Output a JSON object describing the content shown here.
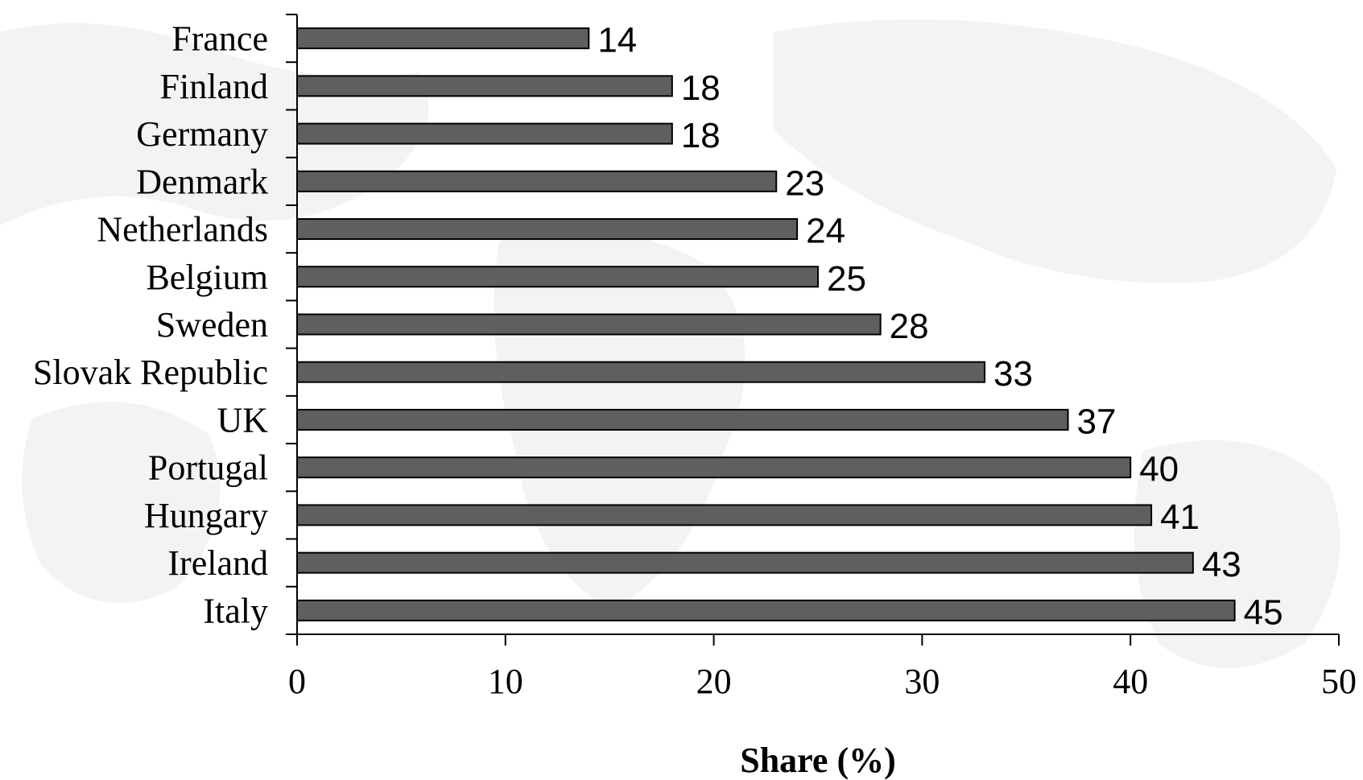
{
  "chart_data": {
    "type": "bar",
    "orientation": "horizontal",
    "categories": [
      "France",
      "Finland",
      "Germany",
      "Denmark",
      "Netherlands",
      "Belgium",
      "Sweden",
      "Slovak Republic",
      "UK",
      "Portugal",
      "Hungary",
      "Ireland",
      "Italy"
    ],
    "values": [
      14,
      18,
      18,
      23,
      24,
      25,
      28,
      33,
      37,
      40,
      41,
      43,
      45
    ],
    "data_labels": [
      "14",
      "18",
      "18",
      "23",
      "24",
      "25",
      "28",
      "33",
      "37",
      "40",
      "41",
      "43",
      "45"
    ],
    "xlabel": "Share (%)",
    "ylabel": "",
    "xlim": [
      0,
      50
    ],
    "xticks": [
      0,
      10,
      20,
      30,
      40,
      50
    ],
    "xtick_labels": [
      "0",
      "10",
      "20",
      "30",
      "40",
      "50"
    ],
    "grid": false,
    "legend": "none",
    "colors": {
      "bar_fill": "#5f5f5f",
      "bar_stroke": "#000000",
      "axis": "#000000",
      "background": "#ffffff",
      "watermark": "#f3f3f3"
    }
  }
}
